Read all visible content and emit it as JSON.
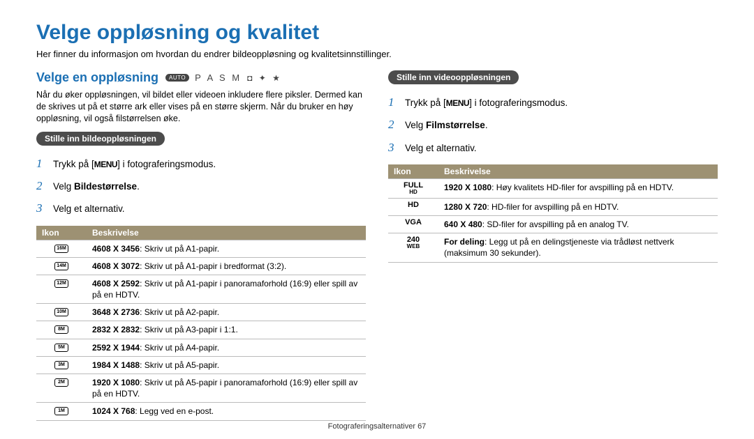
{
  "title": "Velge oppløsning og kvalitet",
  "intro": "Her finner du informasjon om hvordan du endrer bildeoppløsning og kvalitetsinnstillinger.",
  "section_heading": "Velge en oppløsning",
  "mode_auto": "AUTO",
  "mode_letters": "P A S M",
  "body_text": "Når du øker oppløsningen, vil bildet eller videoen inkludere flere piksler. Dermed kan de skrives ut på et større ark eller vises på en større skjerm. Når du bruker en høy oppløsning, vil også filstørrelsen øke.",
  "left_pill": "Stille inn bildeoppløsningen",
  "right_pill": "Stille inn videooppløsningen",
  "menu_key": "MENU",
  "steps_left": {
    "s1_pre": "Trykk på [",
    "s1_post": "] i fotograferingsmodus.",
    "s2_pre": "Velg ",
    "s2_bold": "Bildestørrelse",
    "s2_post": ".",
    "s3": "Velg et alternativ."
  },
  "steps_right": {
    "s1_pre": "Trykk på [",
    "s1_post": "] i fotograferingsmodus.",
    "s2_pre": "Velg ",
    "s2_bold": "Filmstørrelse",
    "s2_post": ".",
    "s3": "Velg et alternativ."
  },
  "table_headers": {
    "icon": "Ikon",
    "desc": "Beskrivelse"
  },
  "left_table": [
    {
      "icon": "16M",
      "bold": "4608 X 3456",
      "rest": ": Skriv ut på A1-papir."
    },
    {
      "icon": "14M",
      "bold": "4608 X 3072",
      "rest": ": Skriv ut på A1-papir i bredformat (3:2)."
    },
    {
      "icon": "12M",
      "bold": "4608 X 2592",
      "rest": ": Skriv ut på A1-papir i panoramaforhold (16:9) eller spill av på en HDTV."
    },
    {
      "icon": "10M",
      "bold": "3648 X 2736",
      "rest": ": Skriv ut på A2-papir."
    },
    {
      "icon": "8M",
      "bold": "2832 X 2832",
      "rest": ": Skriv ut på A3-papir i 1:1."
    },
    {
      "icon": "5M",
      "bold": "2592 X 1944",
      "rest": ": Skriv ut på A4-papir."
    },
    {
      "icon": "3M",
      "bold": "1984 X 1488",
      "rest": ": Skriv ut på A5-papir."
    },
    {
      "icon": "2M",
      "bold": "1920 X 1080",
      "rest": ": Skriv ut på A5-papir i panoramaforhold (16:9) eller spill av på en HDTV."
    },
    {
      "icon": "1M",
      "bold": "1024 X 768",
      "rest": ": Legg ved en e-post."
    }
  ],
  "right_table": [
    {
      "icon_html": "FULL",
      "icon_sub": "HD",
      "bold": "1920 X 1080",
      "rest": ": Høy kvalitets HD-filer for avspilling på en HDTV."
    },
    {
      "icon_html": "HD",
      "icon_sub": "",
      "bold": "1280 X 720",
      "rest": ": HD-filer for avspilling på en HDTV."
    },
    {
      "icon_html": "VGA",
      "icon_sub": "",
      "bold": "640 X 480",
      "rest": ": SD-filer for avspilling på en analog TV."
    },
    {
      "icon_html": "240",
      "icon_sub": "WEB",
      "bold": "For deling",
      "rest": ": Legg ut på en delingstjeneste via trådløst nettverk (maksimum 30 sekunder)."
    }
  ],
  "footer": "Fotograferingsalternativer  67"
}
